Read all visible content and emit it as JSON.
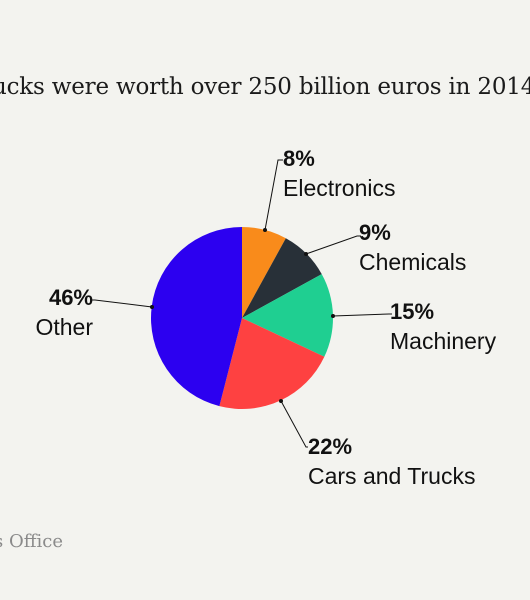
{
  "header": {
    "title": "ucks were worth over 250 billion euros in 2014"
  },
  "footer": {
    "source": "s Office"
  },
  "chart_data": {
    "type": "pie",
    "start_angle_deg": 0,
    "direction": "clockwise",
    "slices": [
      {
        "label": "Electronics",
        "pct_label": "8%",
        "value": 8,
        "color": "#f98b1b"
      },
      {
        "label": "Chemicals",
        "pct_label": "9%",
        "value": 9,
        "color": "#283038"
      },
      {
        "label": "Machinery",
        "pct_label": "15%",
        "value": 15,
        "color": "#1fcf91"
      },
      {
        "label": "Cars and Trucks",
        "pct_label": "22%",
        "value": 22,
        "color": "#fe4141"
      },
      {
        "label": "Other",
        "pct_label": "46%",
        "value": 46,
        "color": "#2c00f0"
      }
    ]
  }
}
